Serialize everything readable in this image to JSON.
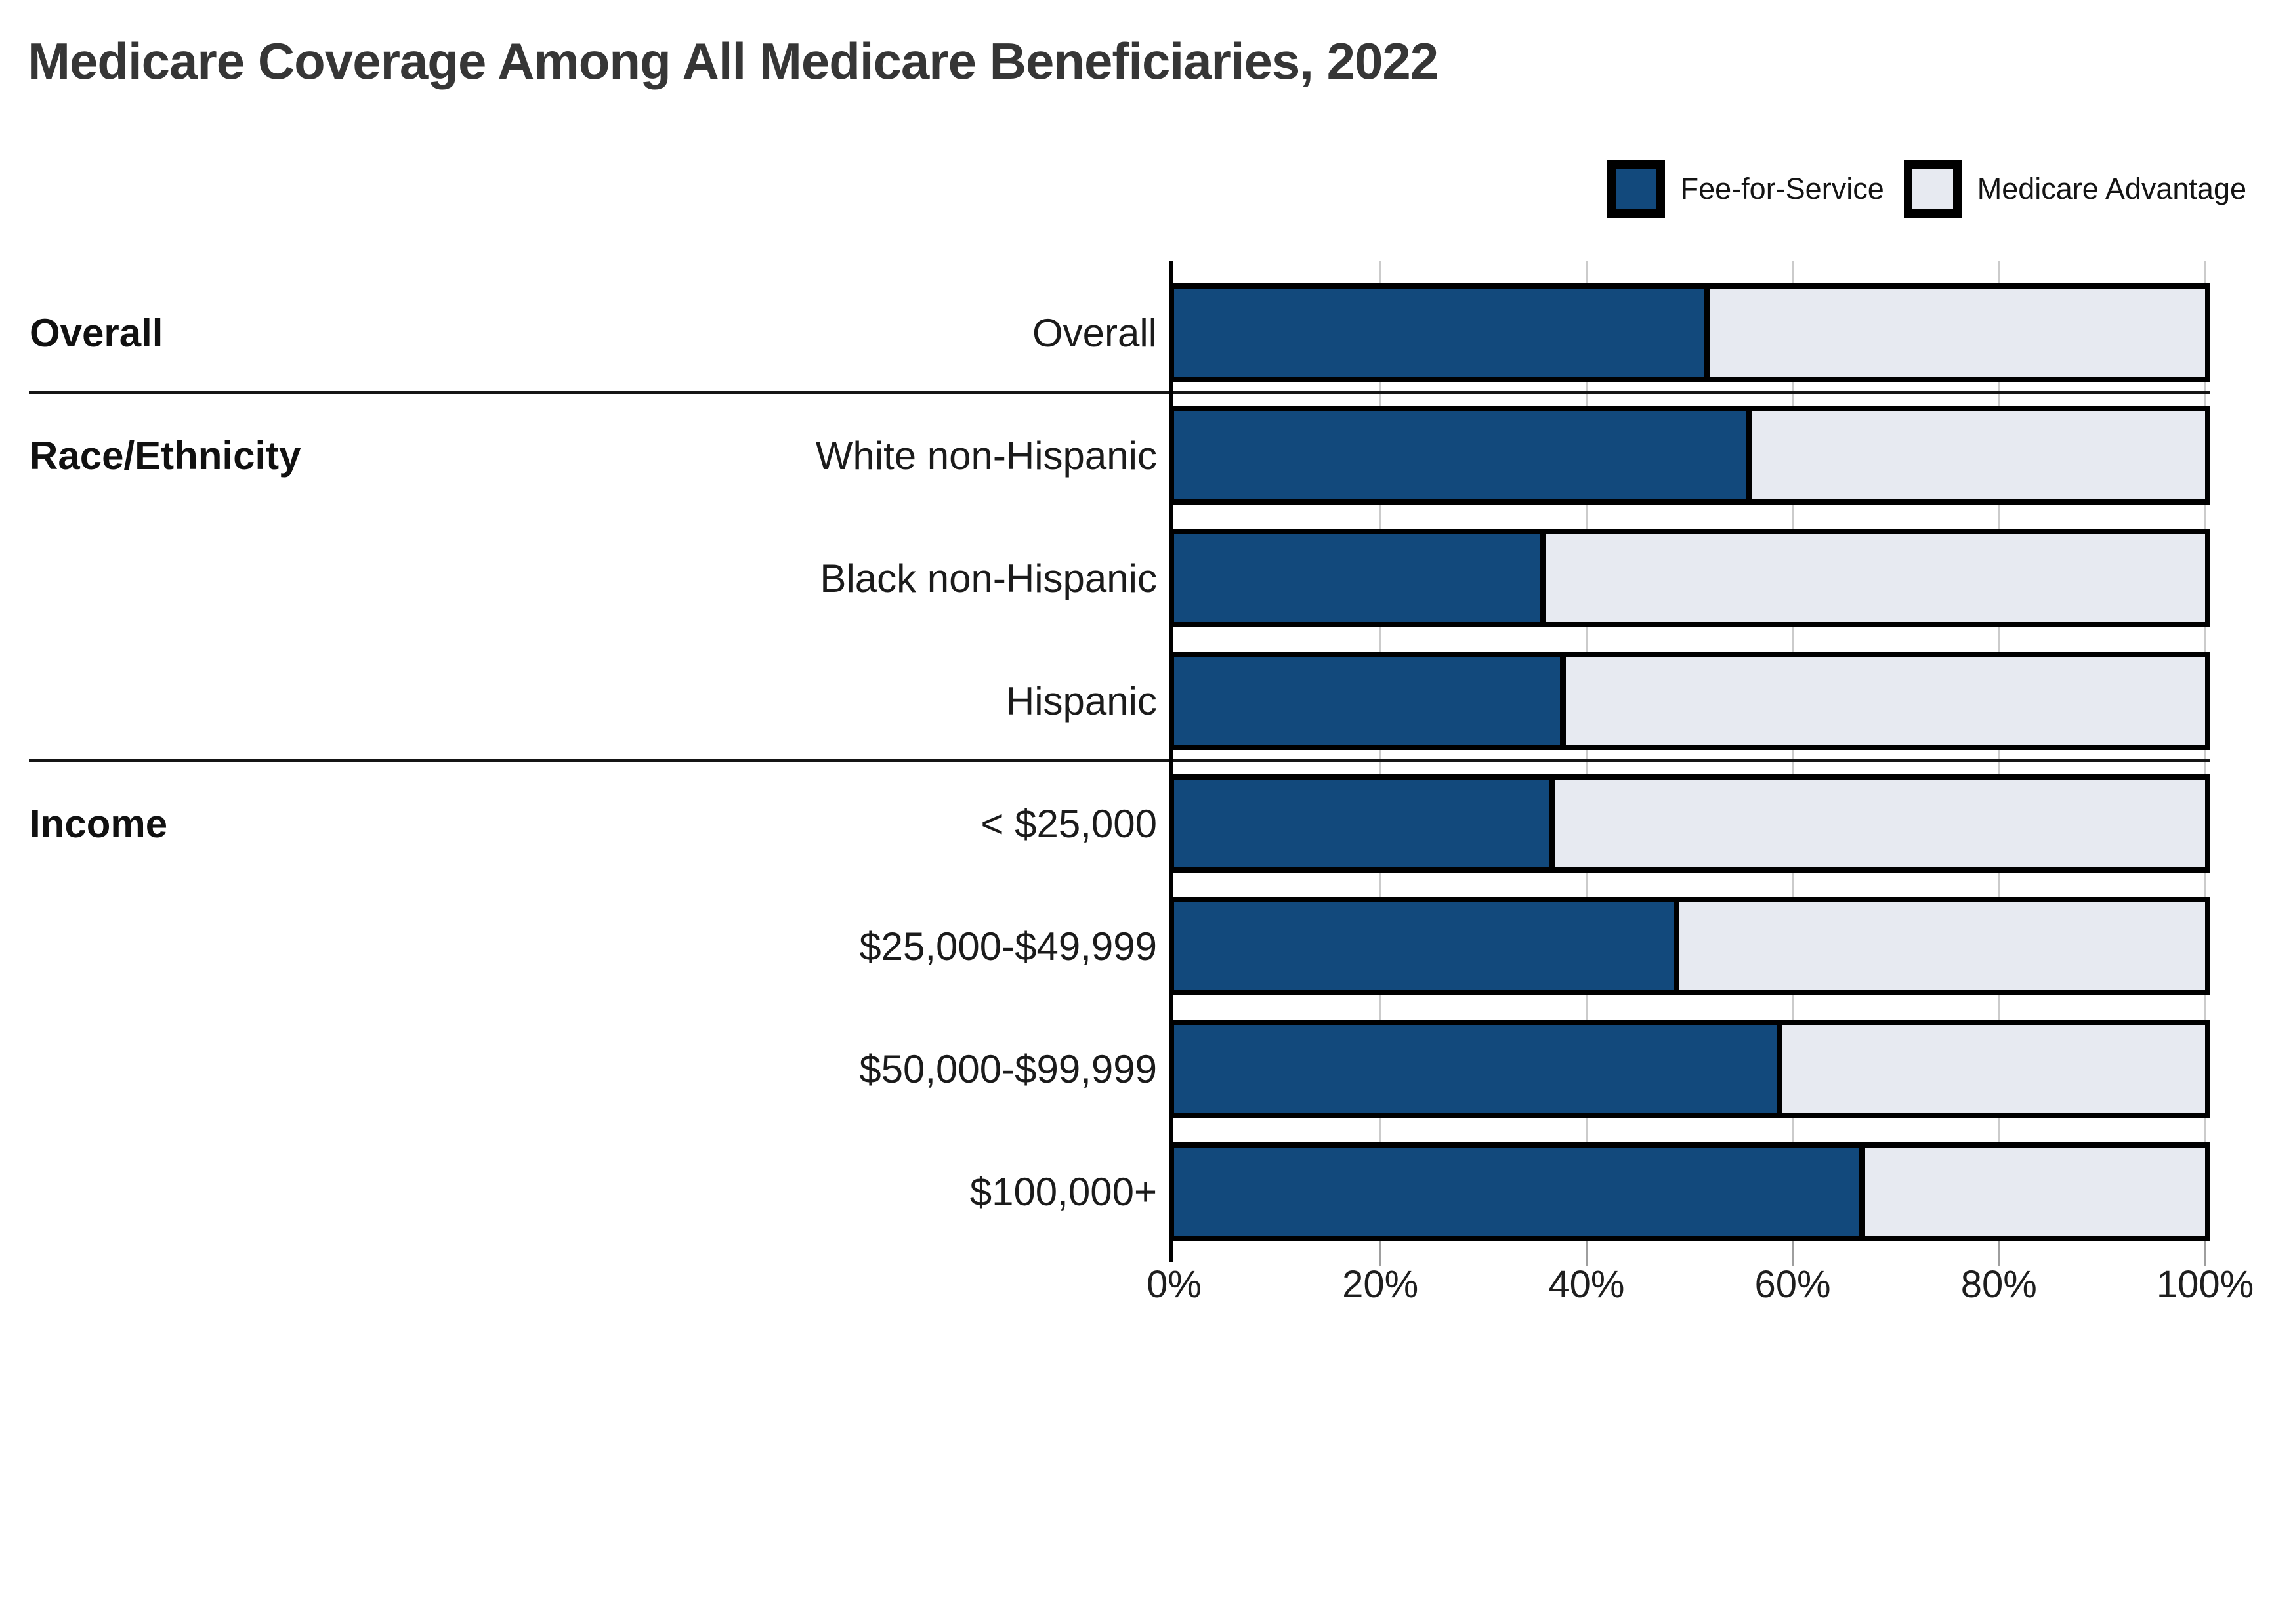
{
  "title": "Medicare Coverage Among All Medicare Beneficiaries, 2022",
  "legend": {
    "items": [
      {
        "label": "Fee-for-Service",
        "swatch": "#12497C"
      },
      {
        "label": "Medicare Advantage",
        "swatch": "#E7EAF1"
      }
    ]
  },
  "colors": {
    "fee_for_service": "#12497C",
    "medicare_advantage": "#E7EAF1",
    "bar_border": "#000000",
    "gridline": "#CBCBCB",
    "tick": "#9E9E9E",
    "divider": "#151515",
    "title_text": "#363636",
    "label_text": "#1B1B1B"
  },
  "groups": [
    {
      "label": "Overall",
      "first_row": 0
    },
    {
      "label": "Race/Ethnicity",
      "first_row": 1
    },
    {
      "label": "Income",
      "first_row": 4
    }
  ],
  "x_axis": {
    "tick_labels": [
      "0%",
      "20%",
      "40%",
      "60%",
      "80%",
      "100%"
    ],
    "min": 0,
    "max": 100
  },
  "chart_data": {
    "type": "bar",
    "stacked": true,
    "orientation": "horizontal",
    "title": "Medicare Coverage Among All Medicare Beneficiaries, 2022",
    "categories": [
      "Overall",
      "White non-Hispanic",
      "Black non-Hispanic",
      "Hispanic",
      "< $25,000",
      "$25,000-$49,999",
      "$50,000-$99,999",
      "$100,000+"
    ],
    "category_groups": [
      "Overall",
      "Race/Ethnicity",
      "Race/Ethnicity",
      "Race/Ethnicity",
      "Income",
      "Income",
      "Income",
      "Income"
    ],
    "series": [
      {
        "name": "Fee-for-Service",
        "color": "#12497C",
        "values": [
          52,
          56,
          36,
          38,
          37,
          49,
          59,
          67
        ]
      },
      {
        "name": "Medicare Advantage",
        "color": "#E7EAF1",
        "values": [
          48,
          44,
          64,
          62,
          63,
          51,
          41,
          33
        ]
      }
    ],
    "xlabel": "",
    "ylabel": "",
    "xlim": [
      0,
      100
    ],
    "x_ticks": [
      0,
      20,
      40,
      60,
      80,
      100
    ],
    "grid": true,
    "legend_position": "top-right"
  }
}
